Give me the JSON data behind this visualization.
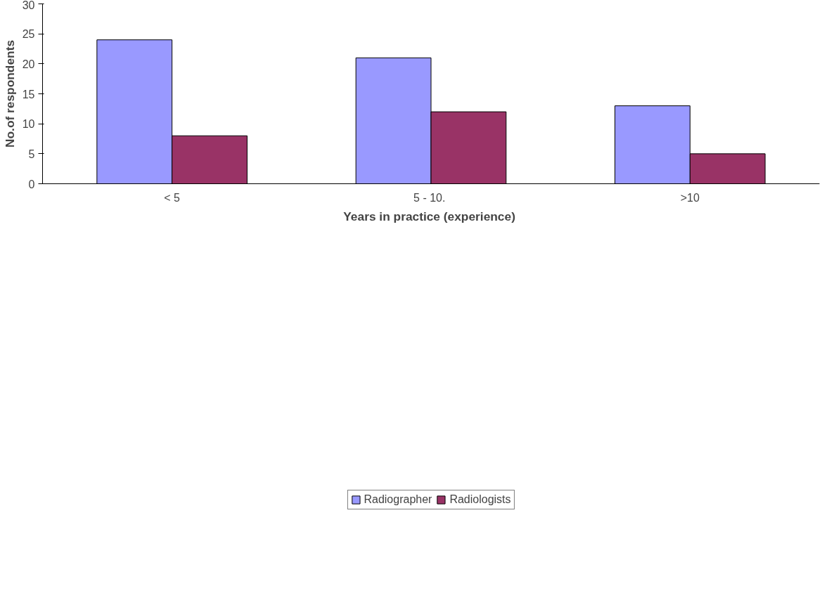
{
  "chart_data": {
    "type": "bar",
    "xlabel": "Years in  practice (experience)",
    "ylabel": "No.of respondents",
    "categories": [
      "< 5",
      "5  - 10.",
      ">10"
    ],
    "series": [
      {
        "name": "Radiographer",
        "color": "#9999ff",
        "values": [
          24,
          21,
          13
        ]
      },
      {
        "name": "Radiologists",
        "color": "#993366",
        "values": [
          8,
          12,
          5
        ]
      }
    ],
    "ylim": [
      0,
      30
    ],
    "yticks": [
      0,
      5,
      10,
      15,
      20,
      25,
      30
    ],
    "grid": false,
    "legend": "bottom"
  }
}
